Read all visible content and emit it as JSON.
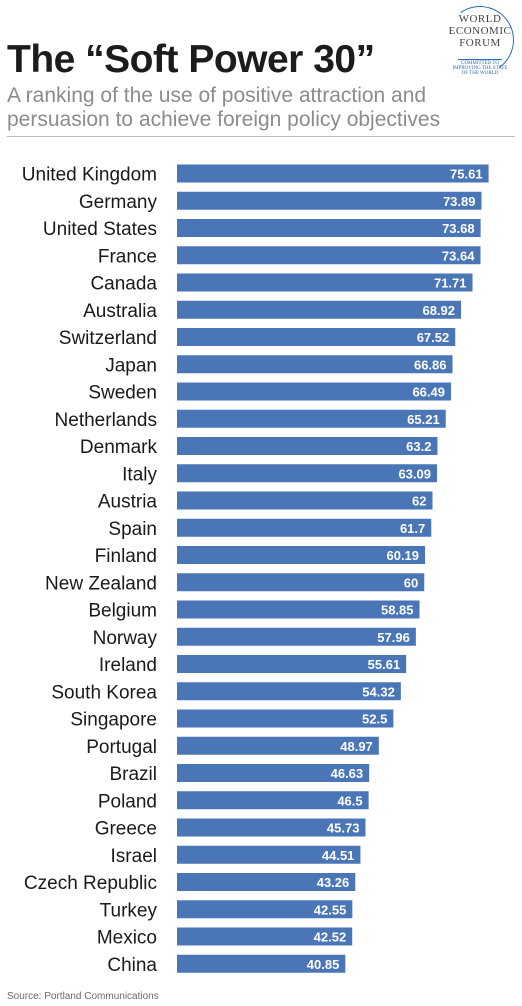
{
  "header": {
    "title": "The “Soft Power 30”",
    "subtitle": "A ranking of the use of positive attraction and persuasion to achieve foreign policy objectives"
  },
  "logo": {
    "line1": "WORLD",
    "line2": "ECONOMIC",
    "line3": "FORUM",
    "motto1": "COMMITTED TO",
    "motto2": "IMPROVING THE STATE",
    "motto3": "OF THE WORLD"
  },
  "footer": {
    "source": "Source: Portland Communications"
  },
  "colors": {
    "bar": "#4a76b8",
    "bar_label": "#ffffff",
    "category_label": "#1a1a1a"
  },
  "chart_data": {
    "type": "bar",
    "orientation": "horizontal",
    "title": "The “Soft Power 30”",
    "subtitle": "A ranking of the use of positive attraction and persuasion to achieve foreign policy objectives",
    "xlim": [
      0,
      77
    ],
    "grid": false,
    "categories": [
      "United Kingdom",
      "Germany",
      "United States",
      "France",
      "Canada",
      "Australia",
      "Switzerland",
      "Japan",
      "Sweden",
      "Netherlands",
      "Denmark",
      "Italy",
      "Austria",
      "Spain",
      "Finland",
      "New Zealand",
      "Belgium",
      "Norway",
      "Ireland",
      "South Korea",
      "Singapore",
      "Portugal",
      "Brazil",
      "Poland",
      "Greece",
      "Israel",
      "Czech Republic",
      "Turkey",
      "Mexico",
      "China"
    ],
    "values": [
      75.61,
      73.89,
      73.68,
      73.64,
      71.71,
      68.92,
      67.52,
      66.86,
      66.49,
      65.21,
      63.2,
      63.09,
      62,
      61.7,
      60.19,
      60,
      58.85,
      57.96,
      55.61,
      54.32,
      52.5,
      48.97,
      46.63,
      46.5,
      45.73,
      44.51,
      43.26,
      42.55,
      42.52,
      40.85
    ],
    "value_labels": [
      "75.61",
      "73.89",
      "73.68",
      "73.64",
      "71.71",
      "68.92",
      "67.52",
      "66.86",
      "66.49",
      "65.21",
      "63.2",
      "63.09",
      "62",
      "61.7",
      "60.19",
      "60",
      "58.85",
      "57.96",
      "55.61",
      "54.32",
      "52.5",
      "48.97",
      "46.63",
      "46.5",
      "45.73",
      "44.51",
      "43.26",
      "42.55",
      "42.52",
      "40.85"
    ]
  }
}
